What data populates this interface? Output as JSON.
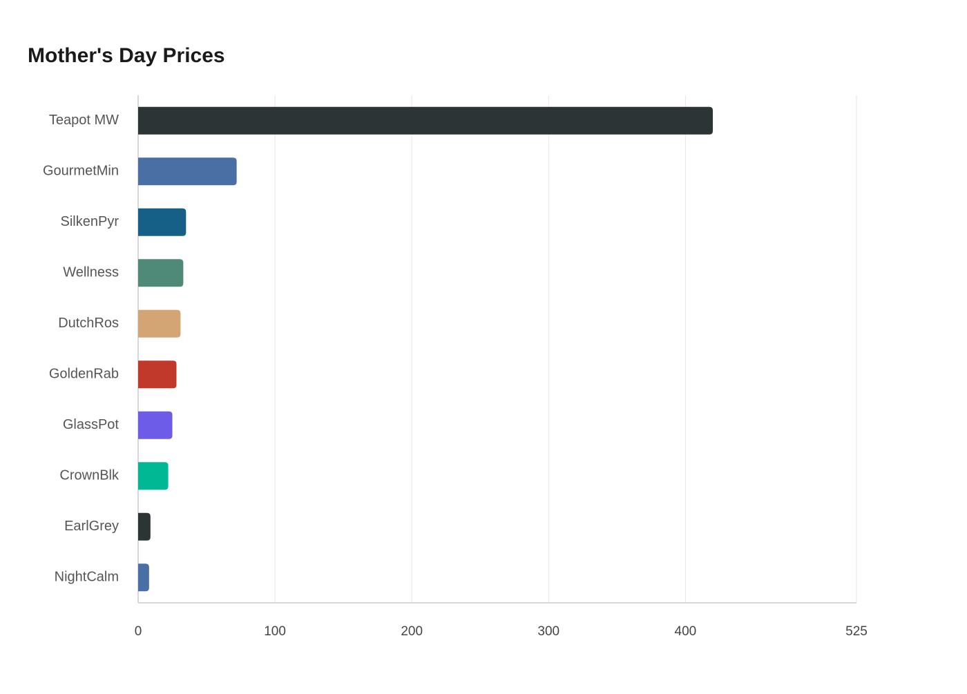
{
  "chart_data": {
    "type": "bar",
    "orientation": "horizontal",
    "title": "Mother's Day Prices",
    "categories": [
      "Teapot MW",
      "GourmetMin",
      "SilkenPyr",
      "Wellness",
      "DutchRos",
      "GoldenRab",
      "GlassPot",
      "CrownBlk",
      "EarlGrey",
      "NightCalm"
    ],
    "values": [
      420,
      72,
      35,
      33,
      31,
      28,
      25,
      22,
      9,
      8
    ],
    "colors": [
      "#2d3436",
      "#4a6fa5",
      "#166088",
      "#4f8a78",
      "#d4a574",
      "#c0392b",
      "#6c5ce7",
      "#00b894",
      "#2d3436",
      "#4a6fa5"
    ],
    "xlim": [
      0,
      525
    ],
    "xticks": [
      0,
      100,
      200,
      300,
      400,
      525
    ],
    "grid": true
  }
}
